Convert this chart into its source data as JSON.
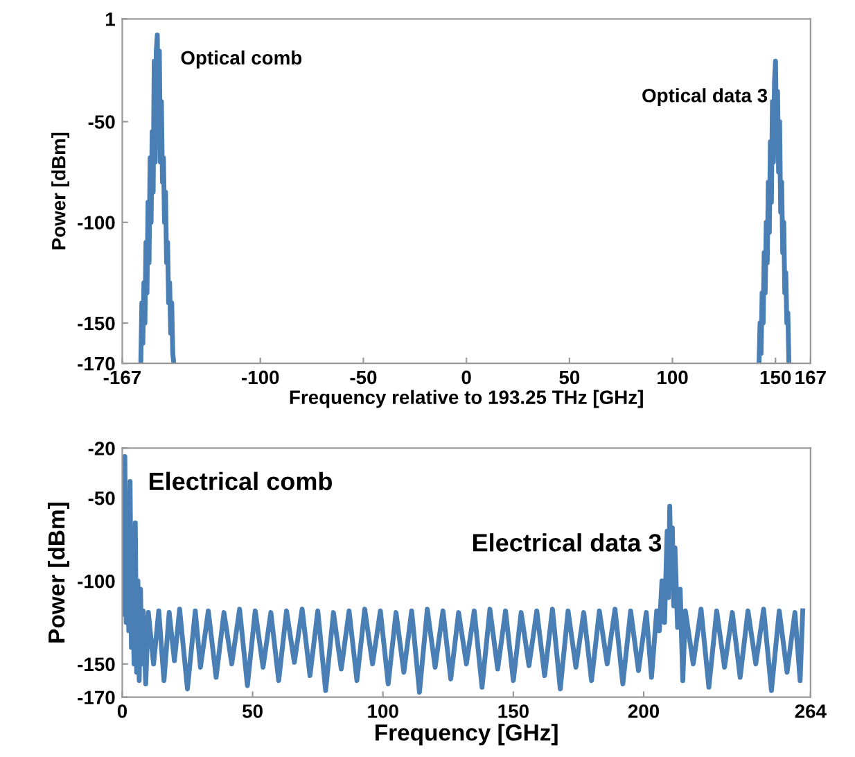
{
  "chart_data": [
    {
      "type": "line",
      "xlabel": "Frequency relative to 193.25 THz [GHz]",
      "ylabel": "Power [dBm]",
      "xlim": [
        -167,
        167
      ],
      "ylim": [
        -170,
        1
      ],
      "xticks": [
        -167,
        -100,
        -50,
        0,
        50,
        100,
        150,
        167
      ],
      "yticks": [
        1,
        -50,
        -100,
        -150,
        -170
      ],
      "grid": false,
      "marker": "none",
      "line_style": "solid",
      "annotations": [
        {
          "text": "Optical comb",
          "x": -150,
          "y": -7
        },
        {
          "text": "Optical data 3",
          "x": 150,
          "y": -20
        }
      ],
      "series": [
        {
          "color": "#4a7fb5",
          "x": [
            -158,
            -157.5,
            -157,
            -156.5,
            -156,
            -155.5,
            -155,
            -154.5,
            -154,
            -153.5,
            -153,
            -152.5,
            -152,
            -151.5,
            -151,
            -150.5,
            -150,
            -149.5,
            -149,
            -148.5,
            -148,
            -147.5,
            -147,
            -146.5,
            -146,
            -145.5,
            -145,
            -144.5,
            -144,
            -143.5,
            -143,
            -142.5,
            -142
          ],
          "values": [
            -170,
            -140,
            -160,
            -130,
            -150,
            -110,
            -135,
            -90,
            -120,
            -68,
            -100,
            -55,
            -85,
            -20,
            -70,
            -15,
            -7,
            -50,
            -15,
            -70,
            -40,
            -80,
            -68,
            -100,
            -85,
            -120,
            -110,
            -140,
            -130,
            -155,
            -140,
            -165,
            -170
          ]
        },
        {
          "color": "#4a7fb5",
          "x": [
            142,
            142.5,
            143,
            143.5,
            144,
            144.5,
            145,
            145.5,
            146,
            146.5,
            147,
            147.5,
            148,
            148.5,
            149,
            149.5,
            150,
            150.5,
            151,
            151.5,
            152,
            152.5,
            153,
            153.5,
            154,
            154.5,
            155,
            155.5,
            156,
            156.5
          ],
          "values": [
            -170,
            -150,
            -165,
            -135,
            -150,
            -115,
            -135,
            -100,
            -120,
            -80,
            -105,
            -60,
            -90,
            -40,
            -70,
            -30,
            -20,
            -60,
            -35,
            -75,
            -50,
            -95,
            -80,
            -115,
            -100,
            -135,
            -125,
            -150,
            -145,
            -170
          ]
        }
      ]
    },
    {
      "type": "line",
      "xlabel": "Frequency [GHz]",
      "ylabel": "Power [dBm]",
      "xlim": [
        0,
        264
      ],
      "ylim": [
        -170,
        -20
      ],
      "xticks": [
        0,
        50,
        100,
        150,
        200,
        264
      ],
      "yticks": [
        -20,
        -50,
        -100,
        -150,
        -170
      ],
      "grid": false,
      "marker": "none",
      "line_style": "solid",
      "annotations": [
        {
          "text": "Electrical comb",
          "x": 1,
          "y": -25
        },
        {
          "text": "Electrical data 3",
          "x": 210,
          "y": -55
        }
      ],
      "series": [
        {
          "color": "#4a7fb5",
          "x": [
            0.5,
            1,
            1.5,
            2,
            2.5,
            3,
            3.5,
            4,
            4.5,
            5,
            5.5,
            6,
            6.5,
            7,
            7.5,
            8,
            9,
            10,
            12,
            14,
            16,
            18,
            20,
            22,
            25,
            28,
            30,
            33,
            36,
            39,
            42,
            45,
            48,
            51,
            54,
            57,
            60,
            63,
            66,
            69,
            72,
            75,
            78,
            81,
            84,
            87,
            90,
            93,
            96,
            99,
            102,
            105,
            108,
            111,
            114,
            117,
            120,
            123,
            126,
            129,
            132,
            135,
            138,
            141,
            144,
            147,
            150,
            153,
            156,
            159,
            162,
            165,
            168,
            171,
            174,
            177,
            180,
            183,
            186,
            189,
            192,
            195,
            198,
            201,
            203,
            205,
            206,
            207,
            208,
            209,
            209.5,
            210,
            210.5,
            211,
            211.5,
            212,
            213,
            214,
            215,
            216,
            219,
            222,
            225,
            228,
            231,
            234,
            237,
            240,
            243,
            246,
            249,
            252,
            255,
            258,
            260,
            261
          ],
          "values": [
            -120,
            -25,
            -125,
            -70,
            -130,
            -40,
            -140,
            -80,
            -150,
            -65,
            -155,
            -100,
            -160,
            -105,
            -150,
            -118,
            -162,
            -119,
            -150,
            -118,
            -160,
            -119,
            -148,
            -117,
            -165,
            -118,
            -152,
            -118,
            -158,
            -119,
            -150,
            -117,
            -163,
            -118,
            -152,
            -119,
            -160,
            -118,
            -149,
            -117,
            -157,
            -118,
            -166,
            -119,
            -153,
            -118,
            -160,
            -117,
            -150,
            -118,
            -162,
            -119,
            -155,
            -118,
            -167,
            -117,
            -152,
            -118,
            -159,
            -119,
            -150,
            -118,
            -164,
            -117,
            -153,
            -118,
            -160,
            -119,
            -151,
            -118,
            -157,
            -117,
            -165,
            -118,
            -152,
            -119,
            -160,
            -118,
            -150,
            -117,
            -162,
            -118,
            -154,
            -119,
            -158,
            -118,
            -130,
            -100,
            -125,
            -70,
            -110,
            -55,
            -100,
            -68,
            -115,
            -80,
            -128,
            -105,
            -160,
            -118,
            -150,
            -117,
            -164,
            -118,
            -152,
            -119,
            -158,
            -118,
            -150,
            -117,
            -166,
            -118,
            -155,
            -119,
            -160,
            -118
          ]
        }
      ]
    }
  ]
}
